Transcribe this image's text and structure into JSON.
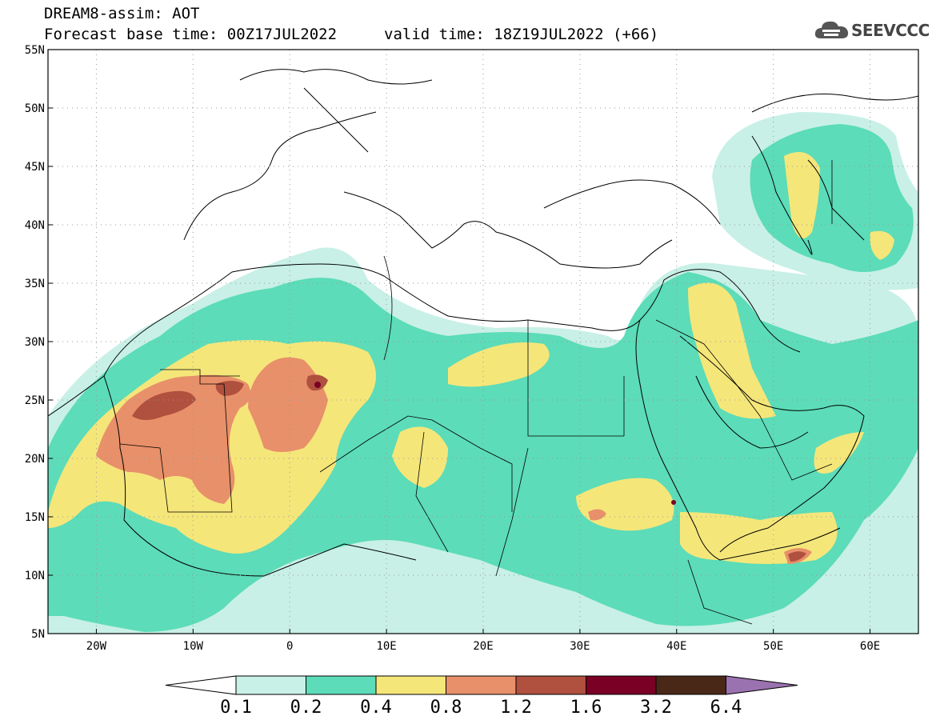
{
  "header": {
    "model": "DREAM8-assim: AOT",
    "base_time": "Forecast base time: 00Z17JUL2022",
    "valid_time": "valid time: 18Z19JUL2022 (+66)"
  },
  "logo": {
    "text": "SEEVCCC",
    "icon": "cloud-logo-icon"
  },
  "map": {
    "lat_labels": [
      "55N",
      "50N",
      "45N",
      "40N",
      "35N",
      "30N",
      "25N",
      "20N",
      "15N",
      "10N",
      "5N"
    ],
    "lon_labels": [
      "20W",
      "10W",
      "0",
      "10E",
      "20E",
      "30E",
      "40E",
      "50E",
      "60E"
    ],
    "lat_range": [
      5,
      55
    ],
    "lon_range": [
      -25,
      65
    ],
    "grid": "dotted"
  },
  "colorbar": {
    "labels": [
      "0.1",
      "0.2",
      "0.4",
      "0.8",
      "1.2",
      "1.6",
      "3.2",
      "6.4"
    ],
    "colors": [
      "#ffffff",
      "#c8f0e6",
      "#5cdcb8",
      "#f5e67a",
      "#e8906a",
      "#b0503e",
      "#7a0025",
      "#4a2818",
      "#9b72b0"
    ]
  }
}
